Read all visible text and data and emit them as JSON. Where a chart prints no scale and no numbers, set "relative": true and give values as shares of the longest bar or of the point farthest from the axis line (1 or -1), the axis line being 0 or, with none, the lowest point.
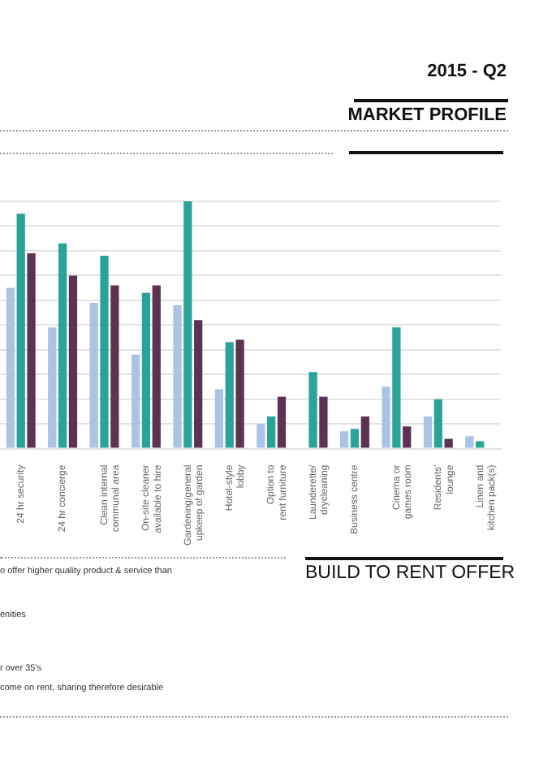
{
  "chart_data": {
    "type": "bar",
    "title": "MARKET PROFILE",
    "subtitle": "2015 - Q2",
    "relative": true,
    "grid": "y",
    "categories": [
      "24 hr security",
      "24 hr concierge",
      "Clean internal communal area",
      "On-site cleaner available to hire",
      "Gardening/general upkeep of garden",
      "Hotel-style lobby",
      "Option to rent furniture",
      "Launderette/ drycleaning",
      "Business centre",
      "Cinema or games room",
      "Residents' lounge",
      "Linen and kitchen pack(s)"
    ],
    "series": [
      {
        "color": "#a9c4e4",
        "values": [
          0.65,
          0.49,
          0.59,
          0.38,
          0.58,
          0.24,
          0.1,
          null,
          0.07,
          0.25,
          0.13,
          0.05
        ]
      },
      {
        "color": "#2aa39a",
        "values": [
          0.95,
          0.83,
          0.78,
          0.63,
          1.0,
          0.43,
          0.13,
          0.31,
          0.08,
          0.49,
          0.2,
          0.03
        ]
      },
      {
        "color": "#5c3352",
        "values": [
          0.79,
          0.7,
          0.66,
          0.66,
          0.52,
          0.44,
          0.21,
          0.21,
          0.13,
          0.09,
          0.04,
          null
        ]
      }
    ],
    "annotations": [
      "BUILD TO RENT OFFER",
      "o offer higher quality product & service than",
      "enities",
      "r over 35's",
      "come on rent, sharing therefore desirable"
    ]
  }
}
